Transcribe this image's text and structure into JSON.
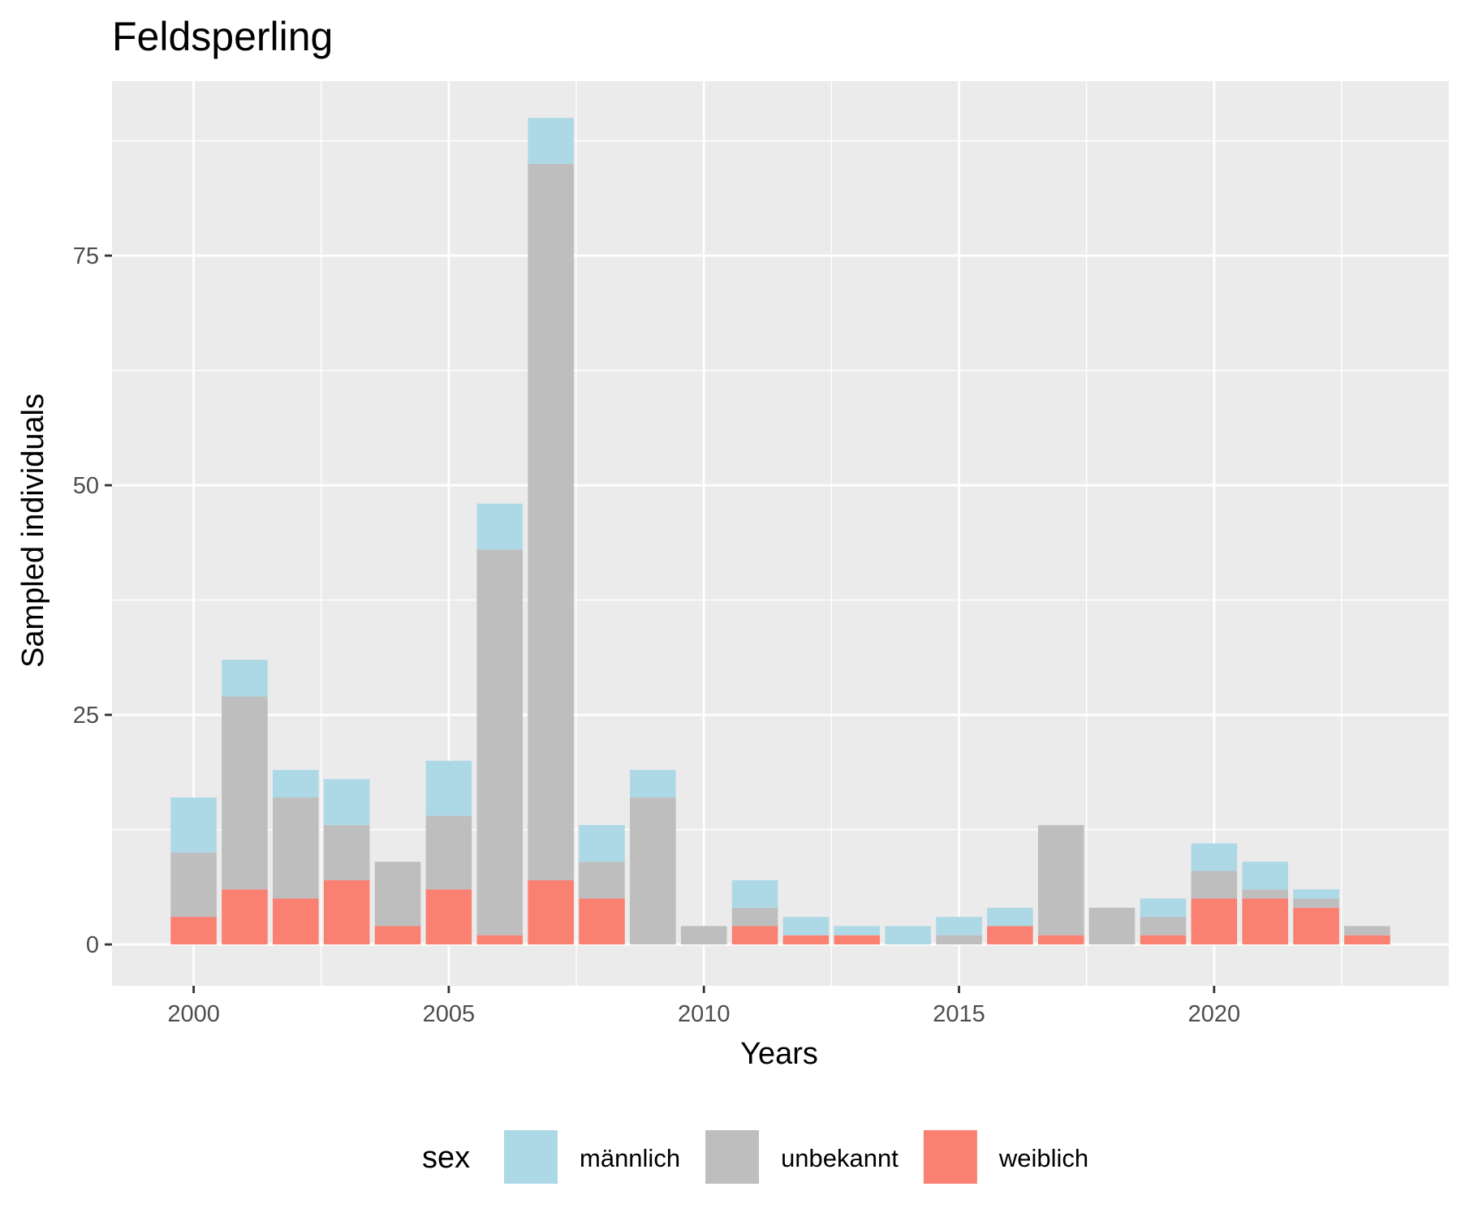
{
  "chart_data": {
    "type": "bar",
    "stacked": true,
    "title": "Feldsperling",
    "xlabel": "Years",
    "ylabel": "Sampled individuals",
    "x": [
      2000,
      2001,
      2002,
      2003,
      2004,
      2005,
      2006,
      2007,
      2008,
      2009,
      2010,
      2011,
      2012,
      2013,
      2014,
      2015,
      2016,
      2017,
      2018,
      2019,
      2020,
      2021,
      2022,
      2023
    ],
    "xticks": [
      "2000",
      "2005",
      "2010",
      "2015",
      "2020"
    ],
    "yticks": [
      "0",
      "25",
      "50",
      "75"
    ],
    "xlim": [
      1998.4,
      2024.6
    ],
    "ylim": [
      -4.5,
      94
    ],
    "legend": {
      "title": "sex",
      "position": "bottom"
    },
    "grid": true,
    "series": [
      {
        "name": "weiblich",
        "color": "#fa8072",
        "values": [
          3,
          6,
          5,
          7,
          2,
          6,
          1,
          7,
          5,
          0,
          0,
          2,
          1,
          1,
          0,
          0,
          2,
          1,
          0,
          1,
          5,
          5,
          4,
          1
        ]
      },
      {
        "name": "unbekannt",
        "color": "#bebebe",
        "values": [
          7,
          21,
          11,
          6,
          7,
          8,
          42,
          78,
          4,
          16,
          2,
          2,
          0,
          0,
          0,
          1,
          0,
          12,
          4,
          2,
          3,
          1,
          1,
          1
        ]
      },
      {
        "name": "männlich",
        "color": "#add8e6",
        "values": [
          6,
          4,
          3,
          5,
          0,
          6,
          5,
          5,
          4,
          3,
          0,
          3,
          2,
          1,
          2,
          2,
          2,
          0,
          0,
          2,
          3,
          3,
          1,
          0
        ]
      }
    ],
    "legend_order": [
      "männlich",
      "unbekannt",
      "weiblich"
    ],
    "colors": {
      "panel_background": "#ebebeb",
      "grid": "#ffffff",
      "tick_text": "#4d4d4d"
    }
  }
}
